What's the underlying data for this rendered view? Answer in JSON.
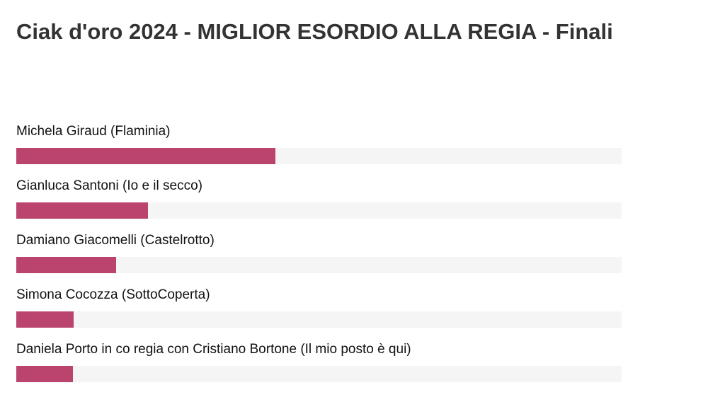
{
  "title": "Ciak d'oro 2024 - MIGLIOR ESORDIO ALLA REGIA - Finali",
  "colors": {
    "bar": "#bb446e",
    "track": "#f5f5f5",
    "title": "#333333"
  },
  "chart_data": {
    "type": "bar",
    "orientation": "horizontal",
    "title": "Ciak d'oro 2024 - MIGLIOR ESORDIO ALLA REGIA - Finali",
    "categories": [
      "Michela Giraud (Flaminia)",
      "Gianluca Santoni (Io e il secco)",
      "Damiano Giacomelli (Castelrotto)",
      "Simona Cocozza (SottoCoperta)",
      "Daniela Porto in co regia con Cristiano Bortone (Il mio posto è qui)"
    ],
    "values": [
      42.8,
      21.7,
      16.5,
      9.5,
      9.4
    ],
    "unit": "percent",
    "xlim": [
      0,
      100
    ],
    "grid": false,
    "legend": "none"
  }
}
